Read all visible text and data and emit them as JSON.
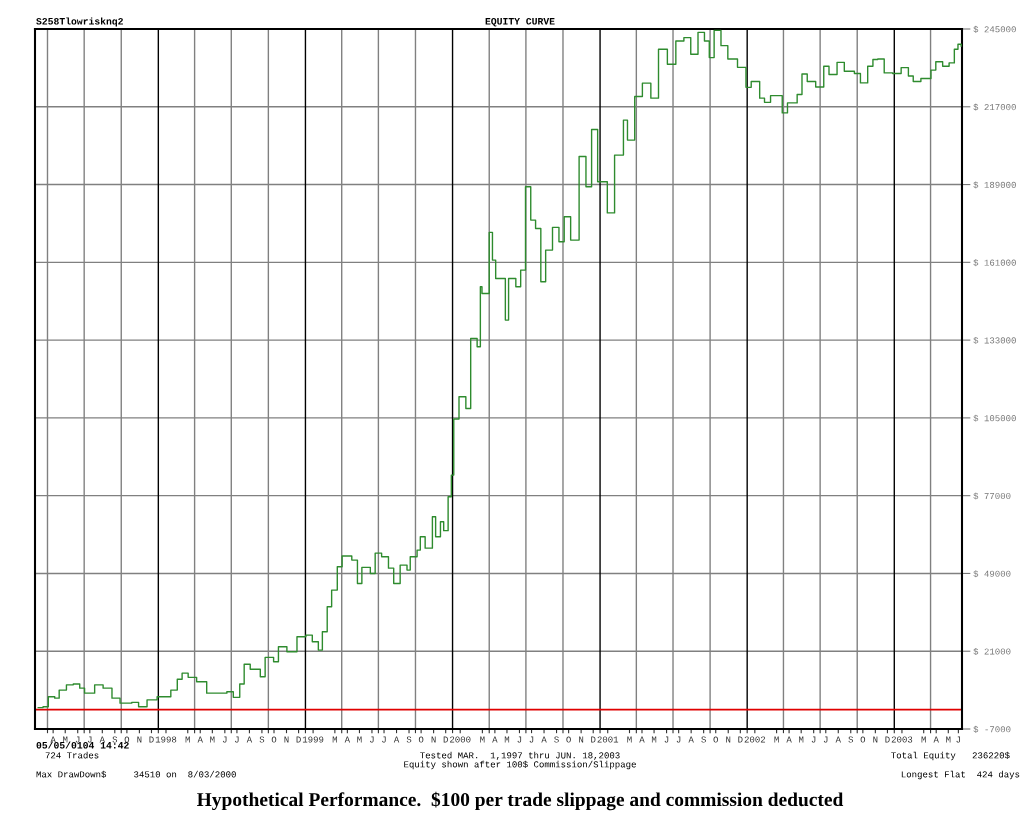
{
  "chart_data": {
    "type": "step",
    "title": "EQUITY CURVE",
    "annotations": [
      "S258Tlowrisknq2",
      "05/05/0104 14:42",
      "724 Trades",
      "Tested MAR.  1,1997 thru JUN. 18,2003",
      "Equity shown after 100$ Commission/Slippage",
      "Total Equity   236220$",
      "Max DrawDown$     34510 on  8/03/2000",
      "Longest Flat  424 days",
      "Hypothetical Performance.  $100 per trade slippage and commission deducted"
    ],
    "series": [
      {
        "color": "#2e8b2e",
        "x": [
          "1997-03-09",
          "1997-03-21",
          "1997-04-03",
          "1997-04-19",
          "1997-04-30",
          "1997-05-18",
          "1997-06-04",
          "1997-06-20",
          "1997-07-02",
          "1997-07-27",
          "1997-08-17",
          "1997-09-08",
          "1997-09-28",
          "1997-10-27",
          "1997-11-13",
          "1997-12-04",
          "1997-12-29",
          "1998-02-01",
          "1998-02-17",
          "1998-03-01",
          "1998-03-16",
          "1998-04-06",
          "1998-05-01",
          "1998-05-17",
          "1998-06-20",
          "1998-07-06",
          "1998-07-22",
          "1998-08-02",
          "1998-08-17",
          "1998-09-11",
          "1998-09-23",
          "1998-10-14",
          "1998-10-26",
          "1998-11-16",
          "1998-12-11",
          "1999-01-02",
          "1999-01-18",
          "1999-02-02",
          "1999-02-12",
          "1999-02-24",
          "1999-03-07",
          "1999-03-21",
          "1999-04-02",
          "1999-04-26",
          "1999-05-10",
          "1999-05-21",
          "1999-06-11",
          "1999-06-23",
          "1999-07-09",
          "1999-07-26",
          "1999-08-08",
          "1999-08-24",
          "1999-09-10",
          "1999-09-18",
          "1999-10-05",
          "1999-10-13",
          "1999-10-25",
          "1999-11-12",
          "1999-11-20",
          "1999-12-02",
          "1999-12-10",
          "1999-12-21",
          "1999-12-29",
          "2000-01-04",
          "2000-01-17",
          "2000-02-03",
          "2000-02-15",
          "2000-03-02",
          "2000-03-10",
          "2000-03-14",
          "2000-04-01",
          "2000-04-09",
          "2000-04-17",
          "2000-05-11",
          "2000-05-19",
          "2000-06-06",
          "2000-06-18",
          "2000-06-30",
          "2000-07-13",
          "2000-07-25",
          "2000-08-07",
          "2000-08-19",
          "2000-09-05",
          "2000-09-21",
          "2000-10-04",
          "2000-10-20",
          "2000-11-10",
          "2000-11-27",
          "2000-12-11",
          "2000-12-26",
          "2001-01-19",
          "2001-02-06",
          "2001-02-28",
          "2001-03-10",
          "2001-03-28",
          "2001-04-16",
          "2001-05-07",
          "2001-05-26",
          "2001-06-17",
          "2001-07-08",
          "2001-07-28",
          "2001-08-14",
          "2001-09-01",
          "2001-09-17",
          "2001-09-29",
          "2001-10-11",
          "2001-10-28",
          "2001-11-14",
          "2001-12-08",
          "2001-12-29",
          "2002-01-11",
          "2002-02-01",
          "2002-02-13",
          "2002-02-28",
          "2002-03-29",
          "2002-04-11",
          "2002-05-05",
          "2002-05-17",
          "2002-05-30",
          "2002-06-20",
          "2002-07-10",
          "2002-07-23",
          "2002-08-12",
          "2002-08-30",
          "2002-09-24",
          "2002-10-09",
          "2002-10-27",
          "2002-11-09",
          "2002-11-21",
          "2002-12-07",
          "2002-12-28",
          "2003-01-18",
          "2003-02-05",
          "2003-02-17",
          "2003-03-08",
          "2003-04-02",
          "2003-04-14",
          "2003-05-01",
          "2003-05-17",
          "2003-05-30",
          "2003-06-08",
          "2003-06-16"
        ],
        "values": [
          700,
          1000,
          4600,
          4100,
          7000,
          8900,
          9200,
          7700,
          5900,
          8900,
          7700,
          4100,
          2300,
          2600,
          1000,
          3500,
          4600,
          7000,
          10900,
          13100,
          11600,
          10000,
          5900,
          5900,
          6400,
          4400,
          9200,
          16300,
          14500,
          11800,
          18800,
          17200,
          22600,
          20800,
          26200,
          26800,
          24400,
          21400,
          28000,
          37000,
          43000,
          51400,
          55300,
          53800,
          45400,
          51200,
          49000,
          56300,
          55000,
          50900,
          45400,
          52000,
          50200,
          55000,
          57400,
          62200,
          58100,
          69400,
          62200,
          67600,
          64400,
          76600,
          84400,
          104600,
          112600,
          108400,
          133600,
          130600,
          152200,
          149800,
          171800,
          161800,
          155200,
          140200,
          155200,
          152200,
          158200,
          188200,
          176200,
          173200,
          154000,
          165400,
          173600,
          168400,
          177400,
          169000,
          199100,
          188200,
          208800,
          190000,
          178800,
          199600,
          212200,
          205000,
          220700,
          225500,
          220100,
          237700,
          232300,
          240700,
          241900,
          235900,
          243800,
          240700,
          234700,
          244500,
          239000,
          234200,
          231200,
          224000,
          226100,
          220100,
          218600,
          221000,
          214800,
          218400,
          221400,
          228800,
          226100,
          224100,
          231600,
          228600,
          233000,
          229800,
          229000,
          225600,
          231600,
          234000,
          234200,
          229200,
          229000,
          231100,
          228100,
          226100,
          227200,
          230200,
          233200,
          231600,
          232800,
          237700,
          239500,
          238900
        ]
      }
    ],
    "xlim": [
      "1997-03-01",
      "2003-06-18"
    ],
    "ylim": [
      -7000,
      245000
    ],
    "yticks": [
      {
        "value": 245000,
        "label": "$ 245000"
      },
      {
        "value": 217000,
        "label": "$ 217000"
      },
      {
        "value": 189000,
        "label": "$ 189000"
      },
      {
        "value": 161000,
        "label": "$ 161000"
      },
      {
        "value": 133000,
        "label": "$ 133000"
      },
      {
        "value": 105000,
        "label": "$ 105000"
      },
      {
        "value": 77000,
        "label": "$ 77000"
      },
      {
        "value": 49000,
        "label": "$ 49000"
      },
      {
        "value": 21000,
        "label": "$ 21000"
      },
      {
        "value": -7000,
        "label": "$ -7000"
      }
    ],
    "xticks": [
      {
        "value": "1997-04-01",
        "label": null
      },
      {
        "value": "1997-07-01",
        "label": null
      },
      {
        "value": "1997-10-01",
        "label": null
      },
      {
        "value": "1998-01-01",
        "label": null
      },
      {
        "value": "1998-04-01",
        "label": null
      },
      {
        "value": "1998-07-01",
        "label": null
      },
      {
        "value": "1998-10-01",
        "label": null
      },
      {
        "value": "1999-01-01",
        "label": null
      },
      {
        "value": "1999-04-01",
        "label": null
      },
      {
        "value": "1999-07-01",
        "label": null
      },
      {
        "value": "1999-10-01",
        "label": null
      },
      {
        "value": "2000-01-01",
        "label": null
      },
      {
        "value": "2000-04-01",
        "label": null
      },
      {
        "value": "2000-07-01",
        "label": null
      },
      {
        "value": "2000-10-01",
        "label": null
      },
      {
        "value": "2001-01-01",
        "label": null
      },
      {
        "value": "2001-04-01",
        "label": null
      },
      {
        "value": "2001-07-01",
        "label": null
      },
      {
        "value": "2001-10-01",
        "label": null
      },
      {
        "value": "2002-01-01",
        "label": null
      },
      {
        "value": "2002-04-01",
        "label": null
      },
      {
        "value": "2002-07-01",
        "label": null
      },
      {
        "value": "2002-10-01",
        "label": null
      },
      {
        "value": "2003-01-01",
        "label": null
      },
      {
        "value": "2003-04-01",
        "label": null
      },
      {
        "value": "1997-04-15",
        "label": "A"
      },
      {
        "value": "1997-05-15",
        "label": "M"
      },
      {
        "value": "1997-06-15",
        "label": "J"
      },
      {
        "value": "1997-07-15",
        "label": "J"
      },
      {
        "value": "1997-08-15",
        "label": "A"
      },
      {
        "value": "1997-09-15",
        "label": "S"
      },
      {
        "value": "1997-10-15",
        "label": "O"
      },
      {
        "value": "1997-11-15",
        "label": "N"
      },
      {
        "value": "1997-12-15",
        "label": "D"
      },
      {
        "value": "1998-01-20",
        "label": "1998"
      },
      {
        "value": "1998-03-15",
        "label": "M"
      },
      {
        "value": "1998-04-15",
        "label": "A"
      },
      {
        "value": "1998-05-15",
        "label": "M"
      },
      {
        "value": "1998-06-15",
        "label": "J"
      },
      {
        "value": "1998-07-15",
        "label": "J"
      },
      {
        "value": "1998-08-15",
        "label": "A"
      },
      {
        "value": "1998-09-15",
        "label": "S"
      },
      {
        "value": "1998-10-15",
        "label": "O"
      },
      {
        "value": "1998-11-15",
        "label": "N"
      },
      {
        "value": "1998-12-15",
        "label": "D"
      },
      {
        "value": "1999-01-20",
        "label": "1999"
      },
      {
        "value": "1999-03-15",
        "label": "M"
      },
      {
        "value": "1999-04-15",
        "label": "A"
      },
      {
        "value": "1999-05-15",
        "label": "M"
      },
      {
        "value": "1999-06-15",
        "label": "J"
      },
      {
        "value": "1999-07-15",
        "label": "J"
      },
      {
        "value": "1999-08-15",
        "label": "A"
      },
      {
        "value": "1999-09-15",
        "label": "S"
      },
      {
        "value": "1999-10-15",
        "label": "O"
      },
      {
        "value": "1999-11-15",
        "label": "N"
      },
      {
        "value": "1999-12-15",
        "label": "D"
      },
      {
        "value": "2000-01-20",
        "label": "2000"
      },
      {
        "value": "2000-03-15",
        "label": "M"
      },
      {
        "value": "2000-04-15",
        "label": "A"
      },
      {
        "value": "2000-05-15",
        "label": "M"
      },
      {
        "value": "2000-06-15",
        "label": "J"
      },
      {
        "value": "2000-07-15",
        "label": "J"
      },
      {
        "value": "2000-08-15",
        "label": "A"
      },
      {
        "value": "2000-09-15",
        "label": "S"
      },
      {
        "value": "2000-10-15",
        "label": "O"
      },
      {
        "value": "2000-11-15",
        "label": "N"
      },
      {
        "value": "2000-12-15",
        "label": "D"
      },
      {
        "value": "2001-01-20",
        "label": "2001"
      },
      {
        "value": "2001-03-15",
        "label": "M"
      },
      {
        "value": "2001-04-15",
        "label": "A"
      },
      {
        "value": "2001-05-15",
        "label": "M"
      },
      {
        "value": "2001-06-15",
        "label": "J"
      },
      {
        "value": "2001-07-15",
        "label": "J"
      },
      {
        "value": "2001-08-15",
        "label": "A"
      },
      {
        "value": "2001-09-15",
        "label": "S"
      },
      {
        "value": "2001-10-15",
        "label": "O"
      },
      {
        "value": "2001-11-15",
        "label": "N"
      },
      {
        "value": "2001-12-15",
        "label": "D"
      },
      {
        "value": "2002-01-20",
        "label": "2002"
      },
      {
        "value": "2002-03-15",
        "label": "M"
      },
      {
        "value": "2002-04-15",
        "label": "A"
      },
      {
        "value": "2002-05-15",
        "label": "M"
      },
      {
        "value": "2002-06-15",
        "label": "J"
      },
      {
        "value": "2002-07-15",
        "label": "J"
      },
      {
        "value": "2002-08-15",
        "label": "A"
      },
      {
        "value": "2002-09-15",
        "label": "S"
      },
      {
        "value": "2002-10-15",
        "label": "O"
      },
      {
        "value": "2002-11-15",
        "label": "N"
      },
      {
        "value": "2002-12-15",
        "label": "D"
      },
      {
        "value": "2003-01-20",
        "label": "2003"
      },
      {
        "value": "2003-03-15",
        "label": "M"
      },
      {
        "value": "2003-04-15",
        "label": "A"
      },
      {
        "value": "2003-05-15",
        "label": "M"
      },
      {
        "value": "2003-06-09",
        "label": "J"
      }
    ],
    "ref_lines": [
      {
        "axis": "y",
        "value": 0,
        "color": "#e00000"
      }
    ],
    "grid": true
  }
}
